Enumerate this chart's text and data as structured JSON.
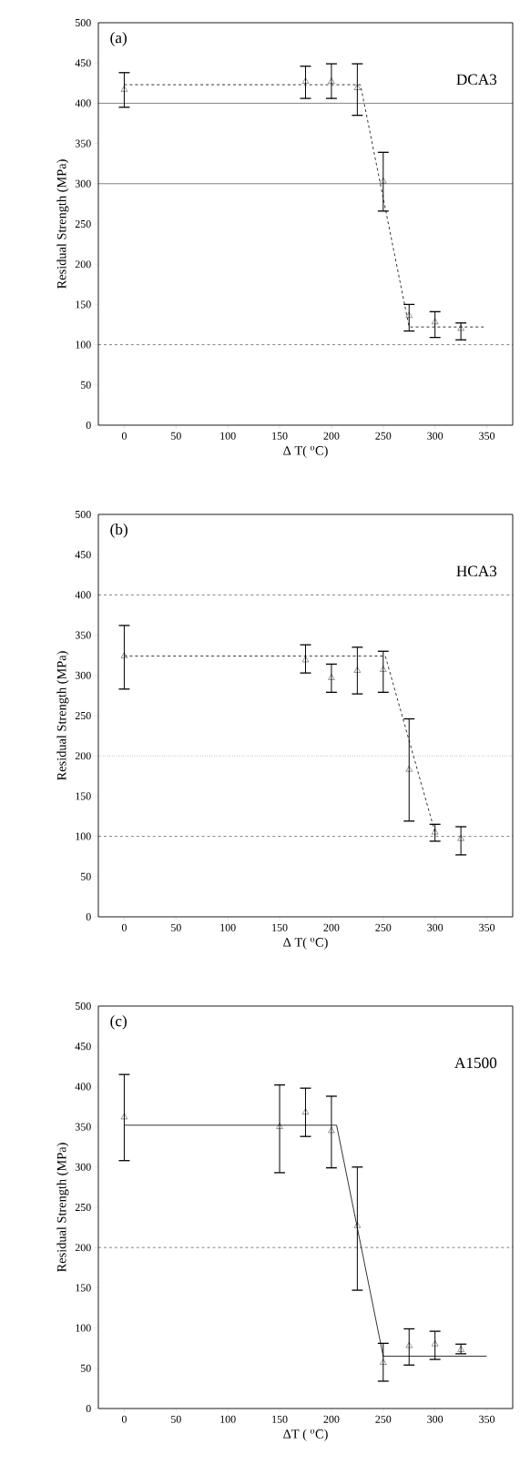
{
  "chart_data": [
    {
      "type": "scatter",
      "xlabel": "Δ T( $^{o}$C)",
      "ylabel": "Residual Strength (MPa)",
      "annotations": [
        "(a)",
        "DCA3"
      ],
      "xlim": [
        -25,
        375
      ],
      "ylim": [
        0,
        500
      ],
      "xticks": [
        0,
        50,
        100,
        150,
        200,
        250,
        300,
        350
      ],
      "yticks": [
        0,
        50,
        100,
        150,
        200,
        250,
        300,
        350,
        400,
        450,
        500
      ],
      "ref_lines": [
        {
          "axis": "y",
          "value": 100,
          "line_style": "dashed"
        },
        {
          "axis": "y",
          "value": 300,
          "line_style": "solid"
        },
        {
          "axis": "y",
          "value": 400,
          "line_style": "solid"
        }
      ],
      "series": [
        {
          "color": "#000000",
          "marker": "triangle",
          "x": [
            0,
            175,
            200,
            225,
            250,
            275,
            300,
            325
          ],
          "values": [
            417,
            427,
            427,
            419,
            303,
            136,
            128,
            120
          ],
          "errors": [
            [
              395,
              438
            ],
            [
              406,
              446
            ],
            [
              406,
              449
            ],
            [
              385,
              449
            ],
            [
              266,
              339
            ],
            [
              117,
              150
            ],
            [
              109,
              141
            ],
            [
              106,
              127
            ]
          ]
        },
        {
          "type": "line",
          "color": "#000000",
          "line_style": "dashed",
          "x": [
            0,
            228,
            275,
            348
          ],
          "values": [
            423,
            423,
            122,
            122
          ]
        }
      ]
    },
    {
      "type": "scatter",
      "xlabel": "Δ T( $^{o}$C)",
      "ylabel": "Residual Strength (MPa)",
      "annotations": [
        "(b)",
        "HCA3"
      ],
      "xlim": [
        -25,
        375
      ],
      "ylim": [
        0,
        500
      ],
      "xticks": [
        0,
        50,
        100,
        150,
        200,
        250,
        300,
        350
      ],
      "yticks": [
        0,
        50,
        100,
        150,
        200,
        250,
        300,
        350,
        400,
        450,
        500
      ],
      "ref_lines": [
        {
          "axis": "y",
          "value": 100,
          "line_style": "dashed"
        },
        {
          "axis": "y",
          "value": 200,
          "line_style": "dotted"
        },
        {
          "axis": "y",
          "value": 400,
          "line_style": "dashed"
        }
      ],
      "series": [
        {
          "color": "#000000",
          "marker": "triangle",
          "x": [
            0,
            175,
            200,
            225,
            250,
            275,
            300,
            325
          ],
          "values": [
            324,
            319,
            297,
            306,
            307,
            183,
            105,
            97
          ],
          "errors": [
            [
              283,
              362
            ],
            [
              303,
              338
            ],
            [
              279,
              314
            ],
            [
              277,
              335
            ],
            [
              279,
              330
            ],
            [
              119,
              246
            ],
            [
              94,
              115
            ],
            [
              77,
              112
            ]
          ]
        },
        {
          "type": "line",
          "color": "#000000",
          "line_style": "dashed",
          "x": [
            0,
            252,
            300
          ],
          "values": [
            324,
            324,
            105
          ]
        }
      ]
    },
    {
      "type": "scatter",
      "xlabel": "ΔT ( $^{o}$C)",
      "ylabel": "Residual Strength (MPa)",
      "annotations": [
        "(c)",
        "A1500"
      ],
      "xlim": [
        -25,
        375
      ],
      "ylim": [
        0,
        500
      ],
      "xticks": [
        0,
        50,
        100,
        150,
        200,
        250,
        300,
        350
      ],
      "yticks": [
        0,
        50,
        100,
        150,
        200,
        250,
        300,
        350,
        400,
        450,
        500
      ],
      "ref_lines": [
        {
          "axis": "y",
          "value": 200,
          "line_style": "dashed"
        }
      ],
      "series": [
        {
          "color": "#000000",
          "marker": "triangle",
          "x": [
            0,
            150,
            175,
            200,
            225,
            250,
            275,
            300,
            325
          ],
          "values": [
            362,
            350,
            368,
            345,
            227,
            57,
            78,
            80,
            73
          ],
          "errors": [
            [
              308,
              415
            ],
            [
              293,
              402
            ],
            [
              338,
              398
            ],
            [
              299,
              388
            ],
            [
              147,
              300
            ],
            [
              34,
              81
            ],
            [
              54,
              99
            ],
            [
              61,
              96
            ],
            [
              68,
              80
            ]
          ]
        },
        {
          "type": "line",
          "color": "#000000",
          "line_style": "solid",
          "x": [
            0,
            205,
            250,
            350
          ],
          "values": [
            352,
            352,
            65,
            65
          ]
        }
      ]
    }
  ]
}
